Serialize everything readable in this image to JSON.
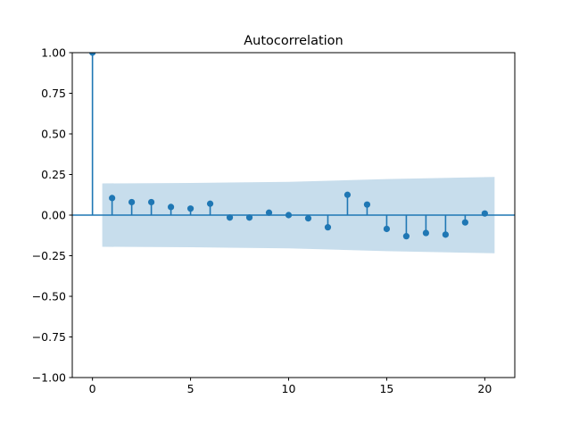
{
  "chart_data": {
    "type": "stem",
    "subtype": "autocorrelation",
    "title": "Autocorrelation",
    "x": [
      0,
      1,
      2,
      3,
      4,
      5,
      6,
      7,
      8,
      9,
      10,
      11,
      12,
      13,
      14,
      15,
      16,
      17,
      18,
      19,
      20
    ],
    "values": [
      1.0,
      0.105,
      0.08,
      0.08,
      0.05,
      0.04,
      0.07,
      -0.015,
      -0.015,
      0.015,
      0.0,
      -0.02,
      -0.075,
      0.125,
      0.065,
      -0.085,
      -0.13,
      -0.11,
      -0.12,
      -0.045,
      0.01
    ],
    "confidence_band": {
      "x": [
        0.5,
        5,
        10,
        13,
        15,
        20.5
      ],
      "ci": [
        0.195,
        0.198,
        0.205,
        0.215,
        0.222,
        0.235
      ]
    },
    "zero_line": 0.0,
    "xlim": [
      -1.03,
      21.53
    ],
    "ylim": [
      -1.0,
      1.0
    ],
    "x_ticks": [
      0,
      5,
      10,
      15,
      20
    ],
    "x_tick_labels": [
      "0",
      "5",
      "10",
      "15",
      "20"
    ],
    "y_ticks": [
      1.0,
      0.75,
      0.5,
      0.25,
      0.0,
      -0.25,
      -0.5,
      -0.75,
      -1.0
    ],
    "y_tick_labels": [
      "1.00",
      "0.75",
      "0.50",
      "0.25",
      "0.00",
      "−0.25",
      "−0.50",
      "−0.75",
      "−1.00"
    ],
    "grid": false,
    "legend": null,
    "colors": {
      "series": "#1f77b4",
      "band_fill": "#1f77b4",
      "band_opacity": 0.25,
      "spine": "#000000",
      "background": "#ffffff"
    }
  }
}
